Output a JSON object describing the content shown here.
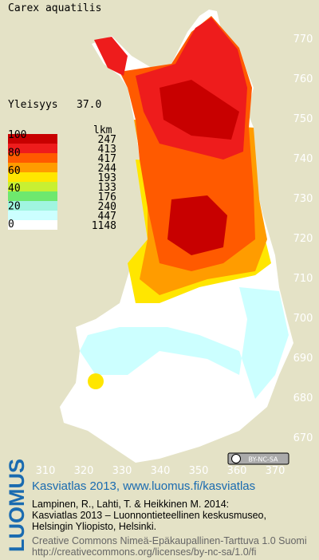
{
  "title": "Carex aquatilis",
  "frequency_label": "Yleisyys",
  "frequency_value": "37.0",
  "legend": {
    "count_header": "lkm",
    "levels": [
      100,
      80,
      60,
      40,
      20,
      0
    ],
    "bands": [
      {
        "color": "#c80000",
        "count": 247
      },
      {
        "color": "#ee1c1c",
        "count": 413
      },
      {
        "color": "#ff5a00",
        "count": 417
      },
      {
        "color": "#ff9c00",
        "count": 244
      },
      {
        "color": "#ffe600",
        "count": 193
      },
      {
        "color": "#c8f032",
        "count": 133
      },
      {
        "color": "#6ee86e",
        "count": 176
      },
      {
        "color": "#a0f5e0",
        "count": 240
      },
      {
        "color": "#ccffff",
        "count": 447
      },
      {
        "color": "#ffffff",
        "count": 1148
      }
    ]
  },
  "map": {
    "x_ticks": [
      310,
      320,
      330,
      340,
      350,
      360,
      370
    ],
    "y_ticks": [
      770,
      760,
      750,
      740,
      730,
      720,
      710,
      700,
      690,
      680,
      670
    ]
  },
  "license_badge": "BY-NC-SA",
  "footer": {
    "brand": "LUOMUS",
    "heading": "Kasviatlas 2013, www.luomus.fi/kasviatlas",
    "citation": [
      "Lampinen, R., Lahti, T. & Heikkinen M. 2014:",
      "Kasviatlas 2013 – Luonnontieteellinen keskusmuseo,",
      "Helsingin Yliopisto, Helsinki."
    ],
    "license": [
      "Creative Commons Nimeä-Epäkaupallinen-Tarttuva 1.0 Suomi",
      "http://creativecommons.org/licenses/by-nc-sa/1.0/fi"
    ]
  }
}
